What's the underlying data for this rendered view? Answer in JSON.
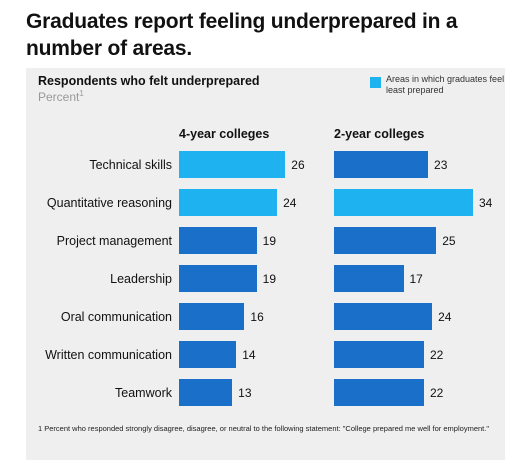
{
  "title": "Graduates report feeling underprepared in a number of areas.",
  "subtitle": "Respondents who felt underprepared",
  "unit": "Percent",
  "unit_note": "1",
  "legend": {
    "label": "Areas in which graduates feel least prepared",
    "color": "#1fb2f0"
  },
  "colors": {
    "highlight": "#1fb2f0",
    "default": "#1a6fc9"
  },
  "footnote": "1 Percent who responded strongly disagree, disagree, or neutral to the following statement: \"College prepared me well for employment.\"",
  "chart_data": {
    "type": "bar",
    "orientation": "horizontal",
    "categories": [
      "Technical skills",
      "Quantitative reasoning",
      "Project management",
      "Leadership",
      "Oral communication",
      "Written communication",
      "Teamwork"
    ],
    "series": [
      {
        "name": "4-year colleges",
        "values": [
          26,
          24,
          19,
          19,
          16,
          14,
          13
        ],
        "highlight": [
          true,
          true,
          false,
          false,
          false,
          false,
          false
        ]
      },
      {
        "name": "2-year colleges",
        "values": [
          23,
          34,
          25,
          17,
          24,
          22,
          22
        ],
        "highlight": [
          false,
          true,
          false,
          false,
          false,
          false,
          false
        ]
      }
    ],
    "xlim": [
      0,
      34
    ]
  }
}
